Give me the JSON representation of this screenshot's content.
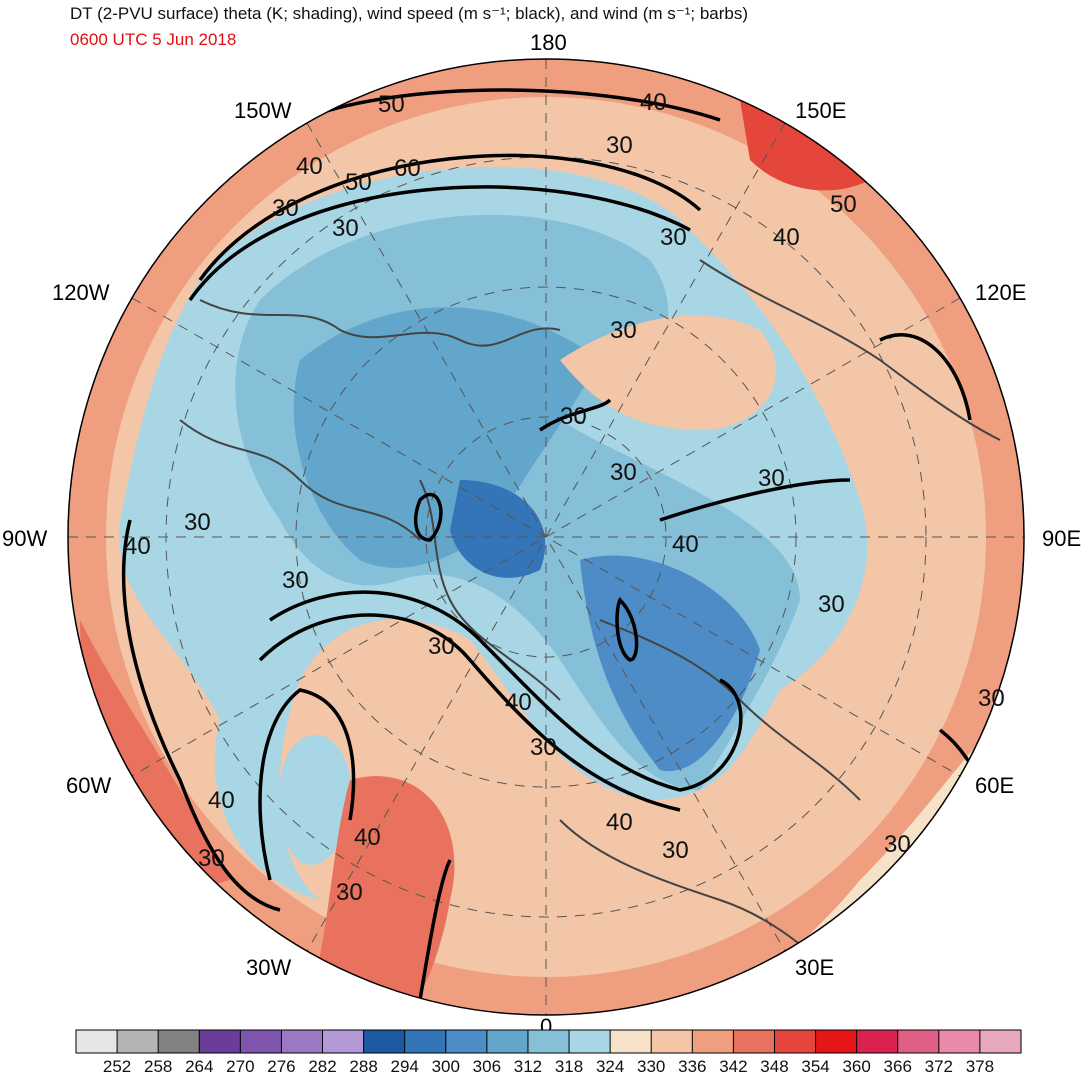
{
  "header": {
    "title": "DT (2-PVU surface) theta (K; shading), wind speed (m s⁻¹; black), and wind (m s⁻¹; barbs)",
    "valid_time": "0600 UTC 5 Jun 2018",
    "title_color": "#111111",
    "time_color": "#e01010"
  },
  "map": {
    "projection": "north-polar-stereographic",
    "longitude_labels": [
      "180",
      "150E",
      "120E",
      "90E",
      "60E",
      "30E",
      "0",
      "30W",
      "60W",
      "90W",
      "120W",
      "150W"
    ],
    "contour_labels": [
      "50",
      "40",
      "30",
      "60",
      "50",
      "30",
      "40",
      "50",
      "30",
      "30",
      "30",
      "30",
      "30",
      "40",
      "30",
      "40",
      "30",
      "30",
      "40",
      "30",
      "40",
      "30",
      "30",
      "40",
      "30",
      "30",
      "30",
      "40",
      "30",
      "40",
      "30"
    ],
    "colors": {
      "ocean_cool": "#a8d8e6",
      "warm": "#f3b494",
      "contour": "#000000",
      "coastline": "#444444"
    }
  },
  "colorbar": {
    "ticks": [
      "252",
      "258",
      "264",
      "270",
      "276",
      "282",
      "288",
      "294",
      "300",
      "306",
      "312",
      "318",
      "324",
      "330",
      "336",
      "342",
      "348",
      "354",
      "360",
      "366",
      "372",
      "378"
    ],
    "colors": [
      "#e6e6e6",
      "#b4b4b4",
      "#828282",
      "#6a3d9a",
      "#7f55ad",
      "#9a78c4",
      "#b39ad6",
      "#1e5aa4",
      "#3475b8",
      "#4d8cc6",
      "#62a6cc",
      "#86bfd8",
      "#a9d6e4",
      "#f6e2c8",
      "#f3c6a8",
      "#ef9f80",
      "#e8725d",
      "#e4463c",
      "#e61616",
      "#d92250",
      "#e05f86",
      "#e98aa8"
    ]
  }
}
